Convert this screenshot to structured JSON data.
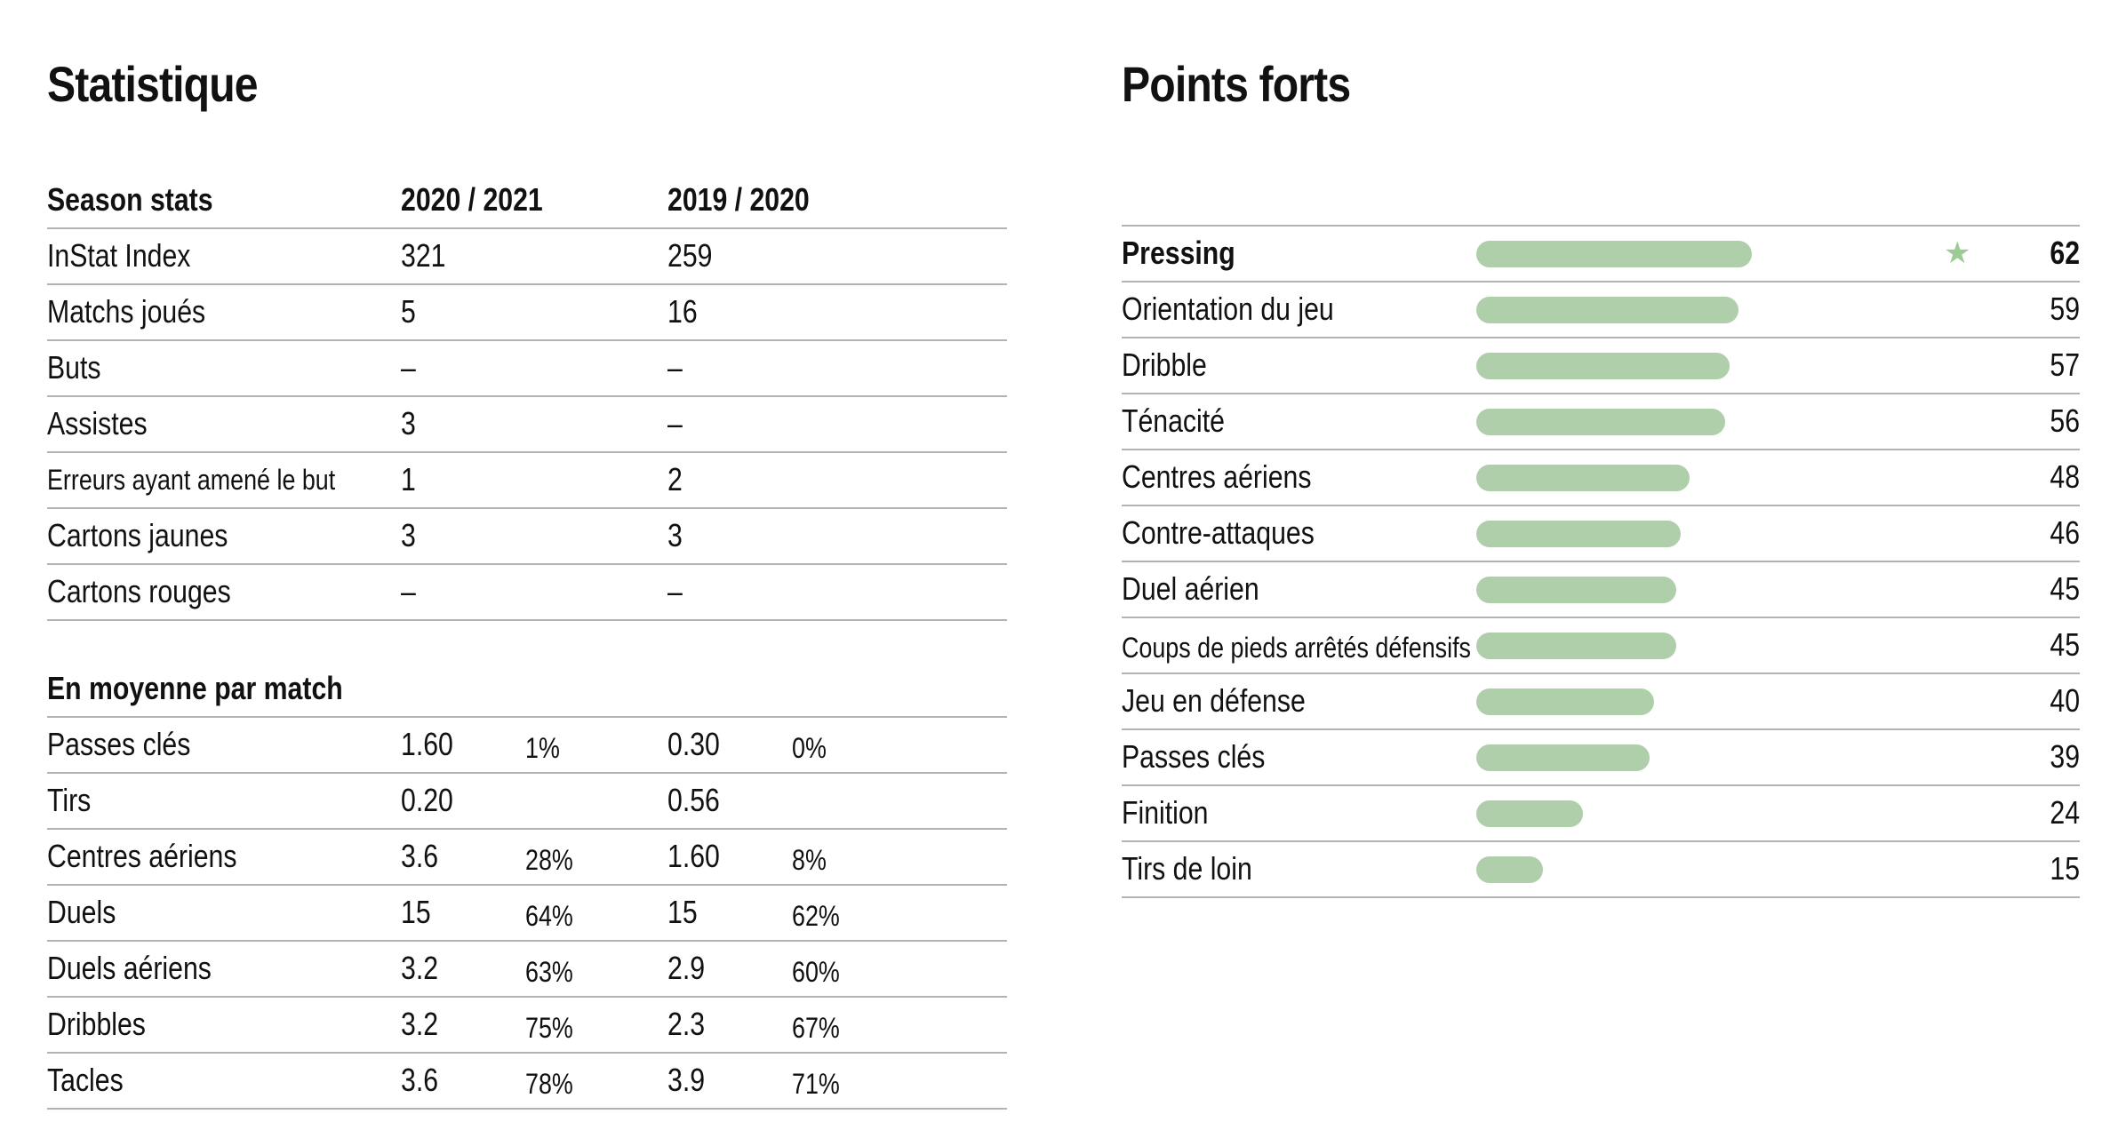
{
  "left": {
    "title": "Statistique",
    "season": {
      "header": [
        "Season stats",
        "2020 / 2021",
        "2019 / 2020"
      ],
      "rows": [
        {
          "label": "InStat Index",
          "v1": "321",
          "v2": "259"
        },
        {
          "label": "Matchs joués",
          "v1": "5",
          "v2": "16"
        },
        {
          "label": "Buts",
          "v1": "–",
          "v2": "–"
        },
        {
          "label": "Assistes",
          "v1": "3",
          "v2": "–"
        },
        {
          "label": "Erreurs ayant amené le but",
          "v1": "1",
          "v2": "2"
        },
        {
          "label": "Cartons jaunes",
          "v1": "3",
          "v2": "3"
        },
        {
          "label": "Cartons rouges",
          "v1": "–",
          "v2": "–"
        }
      ]
    },
    "average": {
      "header": "En moyenne par match",
      "rows": [
        {
          "label": "Passes clés",
          "v1": "1.60",
          "p1": "1%",
          "v2": "0.30",
          "p2": "0%"
        },
        {
          "label": "Tirs",
          "v1": "0.20",
          "p1": "",
          "v2": "0.56",
          "p2": ""
        },
        {
          "label": "Centres aériens",
          "v1": "3.6",
          "p1": "28%",
          "v2": "1.60",
          "p2": "8%"
        },
        {
          "label": "Duels",
          "v1": "15",
          "p1": "64%",
          "v2": "15",
          "p2": "62%"
        },
        {
          "label": "Duels aériens",
          "v1": "3.2",
          "p1": "63%",
          "v2": "2.9",
          "p2": "60%"
        },
        {
          "label": "Dribbles",
          "v1": "3.2",
          "p1": "75%",
          "v2": "2.3",
          "p2": "67%"
        },
        {
          "label": "Tacles",
          "v1": "3.6",
          "p1": "78%",
          "v2": "3.9",
          "p2": "71%"
        }
      ]
    }
  },
  "right": {
    "title": "Points forts",
    "star_icon": "star-icon",
    "bar_color": "#afcfaa",
    "max_value": 100,
    "items": [
      {
        "label": "Pressing",
        "value": 62,
        "highlight": true
      },
      {
        "label": "Orientation du jeu",
        "value": 59
      },
      {
        "label": "Dribble",
        "value": 57
      },
      {
        "label": "Ténacité",
        "value": 56
      },
      {
        "label": "Centres aériens",
        "value": 48
      },
      {
        "label": "Contre-attaques",
        "value": 46
      },
      {
        "label": "Duel aérien",
        "value": 45
      },
      {
        "label": "Coups de pieds arrêtés défensifs",
        "value": 45
      },
      {
        "label": "Jeu en défense",
        "value": 40
      },
      {
        "label": "Passes clés",
        "value": 39
      },
      {
        "label": "Finition",
        "value": 24
      },
      {
        "label": "Tirs de loin",
        "value": 15
      }
    ]
  }
}
